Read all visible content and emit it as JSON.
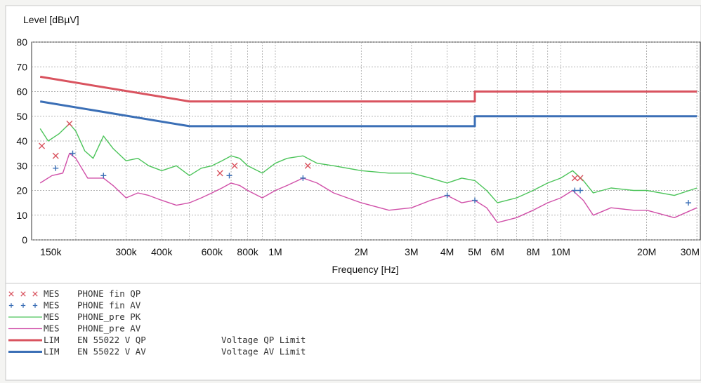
{
  "chart_data": {
    "type": "line",
    "ylabel": "Level [dBµV]",
    "xlabel": "Frequency [Hz]",
    "x_scale": "log",
    "xlim": [
      140000,
      31000000
    ],
    "ylim": [
      0,
      80
    ],
    "y_ticks": [
      0,
      10,
      20,
      30,
      40,
      50,
      60,
      70,
      80
    ],
    "x_ticks": [
      {
        "value": 150000,
        "label": "150k"
      },
      {
        "value": 300000,
        "label": "300k"
      },
      {
        "value": 400000,
        "label": "400k"
      },
      {
        "value": 600000,
        "label": "600k"
      },
      {
        "value": 800000,
        "label": "800k"
      },
      {
        "value": 1000000,
        "label": "1M"
      },
      {
        "value": 2000000,
        "label": "2M"
      },
      {
        "value": 3000000,
        "label": "3M"
      },
      {
        "value": 4000000,
        "label": "4M"
      },
      {
        "value": 5000000,
        "label": "5M"
      },
      {
        "value": 6000000,
        "label": "6M"
      },
      {
        "value": 8000000,
        "label": "8M"
      },
      {
        "value": 10000000,
        "label": "10M"
      },
      {
        "value": 20000000,
        "label": "20M"
      },
      {
        "value": 30000000,
        "label": "30M"
      }
    ],
    "grid": true,
    "legend_position": "bottom",
    "series": [
      {
        "tag": "LIM",
        "name": "EN 55022 V QP",
        "description": "Voltage QP Limit",
        "color": "#d9535f",
        "style": "line",
        "points": [
          [
            150000,
            66
          ],
          [
            500000,
            56
          ],
          [
            5000000,
            56
          ],
          [
            5000000,
            60
          ],
          [
            30000000,
            60
          ]
        ]
      },
      {
        "tag": "LIM",
        "name": "EN 55022 V AV",
        "description": "Voltage AV Limit",
        "color": "#3b6fb6",
        "style": "line",
        "points": [
          [
            150000,
            56
          ],
          [
            500000,
            46
          ],
          [
            5000000,
            46
          ],
          [
            5000000,
            50
          ],
          [
            30000000,
            50
          ]
        ]
      },
      {
        "tag": "MES",
        "name": "PHONE_pre PK",
        "color": "#4cc45a",
        "style": "line",
        "points": [
          [
            150000,
            45
          ],
          [
            160000,
            40
          ],
          [
            175000,
            43
          ],
          [
            190000,
            47
          ],
          [
            200000,
            44
          ],
          [
            215000,
            36
          ],
          [
            230000,
            33
          ],
          [
            250000,
            42
          ],
          [
            270000,
            37
          ],
          [
            300000,
            32
          ],
          [
            330000,
            33
          ],
          [
            360000,
            30
          ],
          [
            400000,
            28
          ],
          [
            450000,
            30
          ],
          [
            500000,
            26
          ],
          [
            550000,
            29
          ],
          [
            600000,
            30
          ],
          [
            650000,
            32
          ],
          [
            700000,
            34
          ],
          [
            750000,
            33
          ],
          [
            800000,
            30
          ],
          [
            900000,
            27
          ],
          [
            1000000,
            31
          ],
          [
            1100000,
            33
          ],
          [
            1250000,
            34
          ],
          [
            1400000,
            31
          ],
          [
            1600000,
            30
          ],
          [
            2000000,
            28
          ],
          [
            2500000,
            27
          ],
          [
            3000000,
            27
          ],
          [
            3500000,
            25
          ],
          [
            4000000,
            23
          ],
          [
            4500000,
            25
          ],
          [
            5000000,
            24
          ],
          [
            5500000,
            20
          ],
          [
            6000000,
            15
          ],
          [
            7000000,
            17
          ],
          [
            8000000,
            20
          ],
          [
            9000000,
            23
          ],
          [
            10000000,
            25
          ],
          [
            11000000,
            28
          ],
          [
            12000000,
            24
          ],
          [
            13000000,
            19
          ],
          [
            15000000,
            21
          ],
          [
            18000000,
            20
          ],
          [
            20000000,
            20
          ],
          [
            25000000,
            18
          ],
          [
            30000000,
            21
          ]
        ]
      },
      {
        "tag": "MES",
        "name": "PHONE_pre AV",
        "color": "#d04fa8",
        "style": "line",
        "points": [
          [
            150000,
            23
          ],
          [
            165000,
            26
          ],
          [
            180000,
            27
          ],
          [
            190000,
            35
          ],
          [
            200000,
            33
          ],
          [
            220000,
            25
          ],
          [
            250000,
            25
          ],
          [
            270000,
            22
          ],
          [
            300000,
            17
          ],
          [
            330000,
            19
          ],
          [
            360000,
            18
          ],
          [
            400000,
            16
          ],
          [
            450000,
            14
          ],
          [
            500000,
            15
          ],
          [
            550000,
            17
          ],
          [
            600000,
            19
          ],
          [
            650000,
            21
          ],
          [
            700000,
            23
          ],
          [
            750000,
            22
          ],
          [
            800000,
            20
          ],
          [
            900000,
            17
          ],
          [
            1000000,
            20
          ],
          [
            1100000,
            22
          ],
          [
            1250000,
            25
          ],
          [
            1400000,
            23
          ],
          [
            1600000,
            19
          ],
          [
            2000000,
            15
          ],
          [
            2500000,
            12
          ],
          [
            3000000,
            13
          ],
          [
            3500000,
            16
          ],
          [
            4000000,
            18
          ],
          [
            4500000,
            15
          ],
          [
            5000000,
            16
          ],
          [
            5500000,
            13
          ],
          [
            6000000,
            7
          ],
          [
            7000000,
            9
          ],
          [
            8000000,
            12
          ],
          [
            9000000,
            15
          ],
          [
            10000000,
            17
          ],
          [
            11000000,
            20
          ],
          [
            12000000,
            16
          ],
          [
            13000000,
            10
          ],
          [
            15000000,
            13
          ],
          [
            18000000,
            12
          ],
          [
            20000000,
            12
          ],
          [
            25000000,
            9
          ],
          [
            30000000,
            13
          ]
        ]
      },
      {
        "tag": "MES",
        "name": "PHONE fin QP",
        "color": "#d9535f",
        "style": "x-marker",
        "points": [
          [
            152000,
            38
          ],
          [
            170000,
            34
          ],
          [
            190000,
            47
          ],
          [
            640000,
            27
          ],
          [
            720000,
            30
          ],
          [
            1300000,
            30
          ],
          [
            11200000,
            25
          ],
          [
            11700000,
            25
          ]
        ]
      },
      {
        "tag": "MES",
        "name": "PHONE fin AV",
        "color": "#3b6fb6",
        "style": "plus-marker",
        "points": [
          [
            170000,
            29
          ],
          [
            195000,
            35
          ],
          [
            250000,
            26
          ],
          [
            690000,
            26
          ],
          [
            1250000,
            25
          ],
          [
            4000000,
            18
          ],
          [
            5000000,
            16
          ],
          [
            11200000,
            20
          ],
          [
            11700000,
            20
          ],
          [
            28000000,
            15
          ]
        ]
      }
    ],
    "legend": [
      {
        "marker": "x",
        "color": "#d9535f",
        "tag": "MES",
        "name": "PHONE fin QP",
        "description": ""
      },
      {
        "marker": "+",
        "color": "#3b6fb6",
        "tag": "MES",
        "name": "PHONE fin AV",
        "description": ""
      },
      {
        "marker": "line-thin",
        "color": "#4cc45a",
        "tag": "MES",
        "name": "PHONE_pre PK",
        "description": ""
      },
      {
        "marker": "line-thin",
        "color": "#d04fa8",
        "tag": "MES",
        "name": "PHONE_pre AV",
        "description": ""
      },
      {
        "marker": "line-thick",
        "color": "#d9535f",
        "tag": "LIM",
        "name": "EN 55022 V QP",
        "description": "Voltage QP Limit"
      },
      {
        "marker": "line-thick",
        "color": "#3b6fb6",
        "tag": "LIM",
        "name": "EN 55022 V AV",
        "description": "Voltage AV Limit"
      }
    ]
  }
}
